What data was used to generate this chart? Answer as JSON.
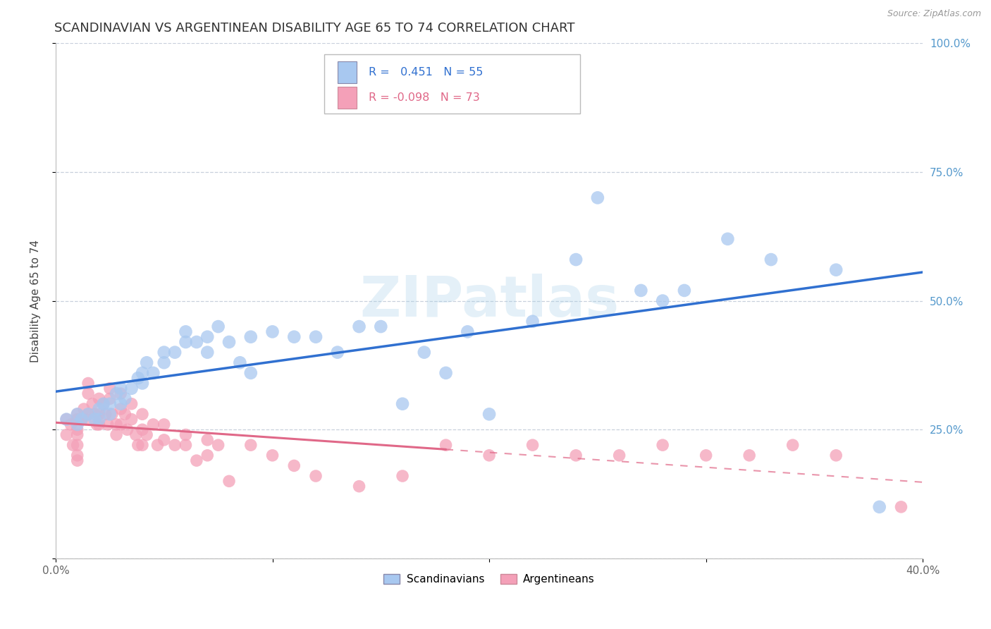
{
  "title": "SCANDINAVIAN VS ARGENTINEAN DISABILITY AGE 65 TO 74 CORRELATION CHART",
  "source": "Source: ZipAtlas.com",
  "ylabel": "Disability Age 65 to 74",
  "xmin": 0.0,
  "xmax": 0.4,
  "ymin": 0.0,
  "ymax": 1.0,
  "yticks": [
    0.0,
    0.25,
    0.5,
    0.75,
    1.0
  ],
  "ytick_labels": [
    "",
    "25.0%",
    "50.0%",
    "75.0%",
    "100.0%"
  ],
  "xticks": [
    0.0,
    0.1,
    0.2,
    0.3,
    0.4
  ],
  "xtick_labels": [
    "0.0%",
    "",
    "",
    "",
    "40.0%"
  ],
  "scand_R": 0.451,
  "scand_N": 55,
  "arg_R": -0.098,
  "arg_N": 73,
  "scand_color": "#a8c8f0",
  "arg_color": "#f4a0b8",
  "scand_line_color": "#3070d0",
  "arg_line_color": "#e06888",
  "background_color": "#ffffff",
  "grid_color": "#c8d0dc",
  "watermark": "ZIPatlas",
  "scand_marker_size": 180,
  "arg_marker_size": 160,
  "title_fontsize": 13,
  "axis_label_fontsize": 11,
  "tick_fontsize": 11,
  "scand_x": [
    0.005,
    0.01,
    0.01,
    0.012,
    0.015,
    0.018,
    0.02,
    0.02,
    0.022,
    0.025,
    0.025,
    0.028,
    0.03,
    0.03,
    0.032,
    0.035,
    0.038,
    0.04,
    0.04,
    0.042,
    0.045,
    0.05,
    0.05,
    0.055,
    0.06,
    0.06,
    0.065,
    0.07,
    0.07,
    0.075,
    0.08,
    0.085,
    0.09,
    0.09,
    0.1,
    0.11,
    0.12,
    0.13,
    0.14,
    0.15,
    0.16,
    0.17,
    0.18,
    0.19,
    0.2,
    0.22,
    0.24,
    0.25,
    0.27,
    0.28,
    0.29,
    0.31,
    0.33,
    0.36,
    0.38
  ],
  "scand_y": [
    0.27,
    0.28,
    0.26,
    0.27,
    0.28,
    0.27,
    0.29,
    0.27,
    0.3,
    0.28,
    0.3,
    0.32,
    0.3,
    0.33,
    0.31,
    0.33,
    0.35,
    0.34,
    0.36,
    0.38,
    0.36,
    0.4,
    0.38,
    0.4,
    0.42,
    0.44,
    0.42,
    0.4,
    0.43,
    0.45,
    0.42,
    0.38,
    0.43,
    0.36,
    0.44,
    0.43,
    0.43,
    0.4,
    0.45,
    0.45,
    0.3,
    0.4,
    0.36,
    0.44,
    0.28,
    0.46,
    0.58,
    0.7,
    0.52,
    0.5,
    0.52,
    0.62,
    0.58,
    0.56,
    0.1
  ],
  "arg_x": [
    0.005,
    0.005,
    0.007,
    0.008,
    0.01,
    0.01,
    0.01,
    0.01,
    0.01,
    0.01,
    0.01,
    0.012,
    0.013,
    0.014,
    0.015,
    0.015,
    0.015,
    0.017,
    0.018,
    0.019,
    0.02,
    0.02,
    0.02,
    0.022,
    0.023,
    0.024,
    0.025,
    0.025,
    0.026,
    0.028,
    0.028,
    0.03,
    0.03,
    0.03,
    0.032,
    0.033,
    0.035,
    0.035,
    0.037,
    0.038,
    0.04,
    0.04,
    0.04,
    0.042,
    0.045,
    0.047,
    0.05,
    0.05,
    0.055,
    0.06,
    0.06,
    0.065,
    0.07,
    0.07,
    0.075,
    0.08,
    0.09,
    0.1,
    0.11,
    0.12,
    0.14,
    0.16,
    0.18,
    0.2,
    0.22,
    0.24,
    0.26,
    0.28,
    0.3,
    0.32,
    0.34,
    0.36,
    0.39
  ],
  "arg_y": [
    0.27,
    0.24,
    0.26,
    0.22,
    0.28,
    0.27,
    0.25,
    0.24,
    0.22,
    0.2,
    0.19,
    0.27,
    0.29,
    0.27,
    0.34,
    0.32,
    0.28,
    0.3,
    0.28,
    0.26,
    0.31,
    0.28,
    0.26,
    0.3,
    0.28,
    0.26,
    0.33,
    0.31,
    0.28,
    0.26,
    0.24,
    0.32,
    0.29,
    0.26,
    0.28,
    0.25,
    0.3,
    0.27,
    0.24,
    0.22,
    0.28,
    0.25,
    0.22,
    0.24,
    0.26,
    0.22,
    0.26,
    0.23,
    0.22,
    0.24,
    0.22,
    0.19,
    0.23,
    0.2,
    0.22,
    0.15,
    0.22,
    0.2,
    0.18,
    0.16,
    0.14,
    0.16,
    0.22,
    0.2,
    0.22,
    0.2,
    0.2,
    0.22,
    0.2,
    0.2,
    0.22,
    0.2,
    0.1
  ]
}
